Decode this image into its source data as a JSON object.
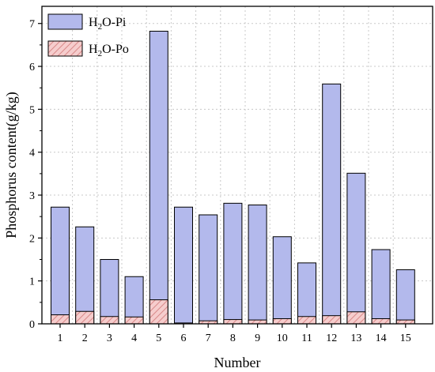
{
  "chart_data": {
    "type": "bar",
    "stacked": false,
    "overlay": true,
    "xlabel": "Number",
    "ylabel": "Phosphorus content(g/kg)",
    "categories": [
      "1",
      "2",
      "3",
      "4",
      "5",
      "6",
      "7",
      "8",
      "9",
      "10",
      "11",
      "12",
      "13",
      "14",
      "15"
    ],
    "ylim": [
      0,
      7.4
    ],
    "yticks": [
      0,
      1,
      2,
      3,
      4,
      5,
      6,
      7
    ],
    "grid": "horizontal dotted",
    "legend_position": "top-left",
    "series": [
      {
        "name": "H2O-Pi",
        "legend_parts": [
          "H",
          "2",
          "O-Pi"
        ],
        "color": "#b3b9ec",
        "values": [
          2.72,
          2.26,
          1.5,
          1.1,
          6.82,
          2.72,
          2.54,
          2.81,
          2.77,
          2.03,
          1.42,
          5.59,
          3.51,
          1.73,
          1.26
        ]
      },
      {
        "name": "H2O-Po",
        "legend_parts": [
          "H",
          "2",
          "O-Po"
        ],
        "color": "#f6cdcd",
        "hatch_color": "#d98a8a",
        "values": [
          0.21,
          0.29,
          0.17,
          0.16,
          0.56,
          0.02,
          0.07,
          0.1,
          0.09,
          0.12,
          0.17,
          0.19,
          0.28,
          0.12,
          0.09
        ]
      }
    ]
  }
}
